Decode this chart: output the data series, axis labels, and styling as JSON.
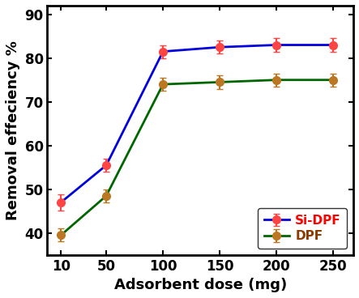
{
  "x": [
    10,
    50,
    100,
    150,
    200,
    250
  ],
  "si_dpf_y": [
    47,
    55.5,
    81.5,
    82.5,
    83,
    83
  ],
  "si_dpf_err": [
    1.8,
    1.5,
    1.5,
    1.5,
    1.5,
    1.5
  ],
  "dpf_y": [
    39.5,
    48.5,
    74,
    74.5,
    75,
    75
  ],
  "dpf_err": [
    1.5,
    1.5,
    1.5,
    1.5,
    1.5,
    1.5
  ],
  "si_dpf_marker_color": "#FF4444",
  "si_dpf_line_color": "#0000DD",
  "dpf_marker_color": "#BB7722",
  "dpf_line_color": "#006600",
  "legend_si_text_color": "#FF0000",
  "legend_dpf_text_color": "#8B3A00",
  "xlabel": "Adsorbent dose (mg)",
  "ylabel": "Removal effeciency %",
  "ylim": [
    35,
    92
  ],
  "xlim": [
    -2,
    268
  ],
  "yticks": [
    40,
    50,
    60,
    70,
    80,
    90
  ],
  "xticks": [
    10,
    50,
    100,
    150,
    200,
    250
  ],
  "legend_si": "Si-DPF",
  "legend_dpf": "DPF",
  "marker_size": 7,
  "linewidth": 2.0,
  "tick_fontsize": 12,
  "label_fontsize": 13,
  "spine_linewidth": 2.0,
  "background_color": "#ffffff"
}
